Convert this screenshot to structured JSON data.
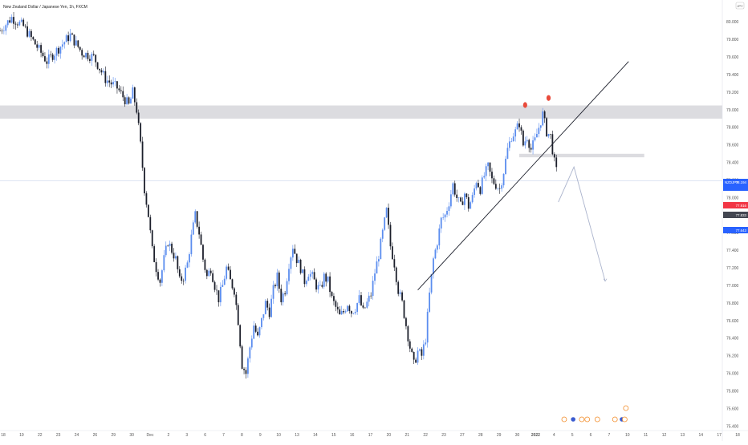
{
  "header": {
    "symbol_title": "New Zealand Dollar / Japanese Yen, 1h, FXCM",
    "settings_icon": "jpy-badge-icon"
  },
  "chart_data": {
    "type": "candlestick",
    "title": "New Zealand Dollar / Japanese Yen, 1h, FXCM",
    "ylim": [
      75.35,
      80.25
    ],
    "y_ticks": [
      "80.000",
      "79.800",
      "79.600",
      "79.400",
      "79.200",
      "79.000",
      "78.800",
      "78.600",
      "78.400",
      "78.200",
      "78.000",
      "77.800",
      "77.600",
      "77.400",
      "77.200",
      "77.000",
      "76.800",
      "76.600",
      "76.400",
      "76.200",
      "76.000",
      "75.800",
      "75.600",
      "75.400"
    ],
    "y_tick_values": [
      80.0,
      79.8,
      79.6,
      79.4,
      79.2,
      79.0,
      78.8,
      78.6,
      78.4,
      78.2,
      78.0,
      77.8,
      77.6,
      77.4,
      77.2,
      77.0,
      76.8,
      76.6,
      76.4,
      76.2,
      76.0,
      75.8,
      75.6,
      75.4
    ],
    "x_ticks": [
      "18",
      "19",
      "22",
      "23",
      "24",
      "26",
      "29",
      "30",
      "Dec",
      "2",
      "3",
      "6",
      "7",
      "8",
      "9",
      "10",
      "13",
      "14",
      "15",
      "16",
      "17",
      "20",
      "21",
      "22",
      "23",
      "27",
      "28",
      "29",
      "30",
      "2022",
      "4",
      "5",
      "6",
      "7",
      "10",
      "11",
      "12",
      "13",
      "14",
      "17",
      "18"
    ],
    "price_labels": [
      {
        "text": "NZDJPY",
        "value": "78.194",
        "color": "#2962ff"
      },
      {
        "text": "",
        "value": "",
        "color": "#2962ff"
      },
      {
        "text": "",
        "value": "77.916",
        "color": "#f23645"
      },
      {
        "text": "",
        "value": "77.833",
        "color": "#434651"
      },
      {
        "text": "",
        "value": "77.643",
        "color": "#2962ff"
      }
    ],
    "price_path": [
      [
        0,
        79.9
      ],
      [
        3,
        80.05
      ],
      [
        6,
        79.95
      ],
      [
        9,
        79.75
      ],
      [
        12,
        79.55
      ],
      [
        15,
        79.7
      ],
      [
        18,
        79.85
      ],
      [
        21,
        79.65
      ],
      [
        24,
        79.6
      ],
      [
        27,
        79.35
      ],
      [
        30,
        79.25
      ],
      [
        33,
        79.05
      ],
      [
        34,
        79.2
      ],
      [
        35,
        79.0
      ],
      [
        36,
        78.6
      ],
      [
        37,
        78.1
      ],
      [
        38,
        77.8
      ],
      [
        39,
        77.4
      ],
      [
        40,
        77.2
      ],
      [
        41,
        77.05
      ],
      [
        42,
        77.3
      ],
      [
        43,
        77.5
      ],
      [
        44,
        77.4
      ],
      [
        45,
        77.3
      ],
      [
        46,
        77.05
      ],
      [
        47,
        77.1
      ],
      [
        48,
        77.25
      ],
      [
        49,
        77.55
      ],
      [
        50,
        77.8
      ],
      [
        51,
        77.6
      ],
      [
        52,
        77.3
      ],
      [
        53,
        77.1
      ],
      [
        54,
        77.2
      ],
      [
        55,
        77.0
      ],
      [
        56,
        76.85
      ],
      [
        57,
        77.0
      ],
      [
        58,
        77.2
      ],
      [
        59,
        77.05
      ],
      [
        60,
        76.95
      ],
      [
        61,
        76.6
      ],
      [
        62,
        76.1
      ],
      [
        63,
        76.0
      ],
      [
        64,
        76.3
      ],
      [
        65,
        76.55
      ],
      [
        66,
        76.4
      ],
      [
        67,
        76.6
      ],
      [
        68,
        76.8
      ],
      [
        69,
        76.7
      ],
      [
        70,
        76.95
      ],
      [
        71,
        77.1
      ],
      [
        72,
        76.85
      ],
      [
        73,
        76.95
      ],
      [
        74,
        77.25
      ],
      [
        75,
        77.45
      ],
      [
        76,
        77.3
      ],
      [
        77,
        77.2
      ],
      [
        78,
        77.05
      ],
      [
        79,
        77.15
      ],
      [
        80,
        77.1
      ],
      [
        81,
        77.0
      ],
      [
        82,
        76.95
      ],
      [
        83,
        77.1
      ],
      [
        84,
        77.05
      ],
      [
        85,
        76.85
      ],
      [
        86,
        76.75
      ],
      [
        87,
        76.65
      ],
      [
        88,
        76.7
      ],
      [
        89,
        76.8
      ],
      [
        90,
        76.7
      ],
      [
        91,
        76.75
      ],
      [
        92,
        76.85
      ],
      [
        93,
        76.7
      ],
      [
        94,
        76.8
      ],
      [
        95,
        76.9
      ],
      [
        96,
        77.15
      ],
      [
        97,
        77.35
      ],
      [
        98,
        77.6
      ],
      [
        99,
        77.85
      ],
      [
        100,
        77.45
      ],
      [
        101,
        77.25
      ],
      [
        102,
        76.95
      ],
      [
        103,
        76.8
      ],
      [
        104,
        76.55
      ],
      [
        105,
        76.3
      ],
      [
        106,
        76.1
      ],
      [
        107,
        76.25
      ],
      [
        108,
        76.2
      ],
      [
        109,
        76.4
      ],
      [
        110,
        76.9
      ],
      [
        111,
        77.3
      ],
      [
        112,
        77.5
      ],
      [
        113,
        77.75
      ],
      [
        114,
        77.8
      ],
      [
        115,
        77.95
      ],
      [
        116,
        78.15
      ],
      [
        117,
        78.0
      ],
      [
        118,
        77.9
      ],
      [
        119,
        78.05
      ],
      [
        120,
        77.9
      ],
      [
        121,
        78.0
      ],
      [
        122,
        78.2
      ],
      [
        123,
        78.1
      ],
      [
        124,
        78.25
      ],
      [
        125,
        78.35
      ],
      [
        126,
        78.2
      ],
      [
        127,
        78.15
      ],
      [
        128,
        78.1
      ],
      [
        129,
        78.3
      ],
      [
        130,
        78.55
      ],
      [
        131,
        78.7
      ],
      [
        132,
        78.75
      ],
      [
        133,
        78.85
      ],
      [
        134,
        78.6
      ],
      [
        135,
        78.7
      ],
      [
        136,
        78.55
      ],
      [
        137,
        78.65
      ],
      [
        138,
        78.8
      ],
      [
        139,
        78.95
      ],
      [
        140,
        78.75
      ],
      [
        141,
        78.7
      ],
      [
        142,
        78.4
      ],
      [
        143,
        78.2
      ]
    ],
    "x_domain": [
      0,
      185
    ],
    "zones": [
      {
        "name": "resistance-zone",
        "y_top": 79.05,
        "y_bottom": 78.9,
        "x_start": 0,
        "x_end": 185
      },
      {
        "name": "support-level",
        "y_top": 78.5,
        "y_bottom": 78.46,
        "x_start": 133,
        "x_end": 165
      }
    ],
    "current_price_line": 78.194,
    "trendline": [
      [
        107,
        76.95
      ],
      [
        161,
        79.55
      ]
    ],
    "projection_path": [
      [
        143,
        77.95
      ],
      [
        147,
        78.35
      ],
      [
        155,
        77.05
      ]
    ],
    "top_markers": [
      {
        "x": 134.5,
        "y": 79.0
      },
      {
        "x": 140.5,
        "y": 79.08
      }
    ],
    "events": [
      {
        "x": 144.5,
        "kind": "orange"
      },
      {
        "x": 146.8,
        "kind": "blue"
      },
      {
        "x": 149.0,
        "kind": "orange"
      },
      {
        "x": 150.4,
        "kind": "orange"
      },
      {
        "x": 153.0,
        "kind": "orange"
      },
      {
        "x": 157.5,
        "kind": "orange"
      },
      {
        "x": 159.3,
        "kind": "blue"
      },
      {
        "x": 160.0,
        "kind": "orange"
      },
      {
        "x": 160.3,
        "kind": "orange-stack"
      }
    ]
  }
}
